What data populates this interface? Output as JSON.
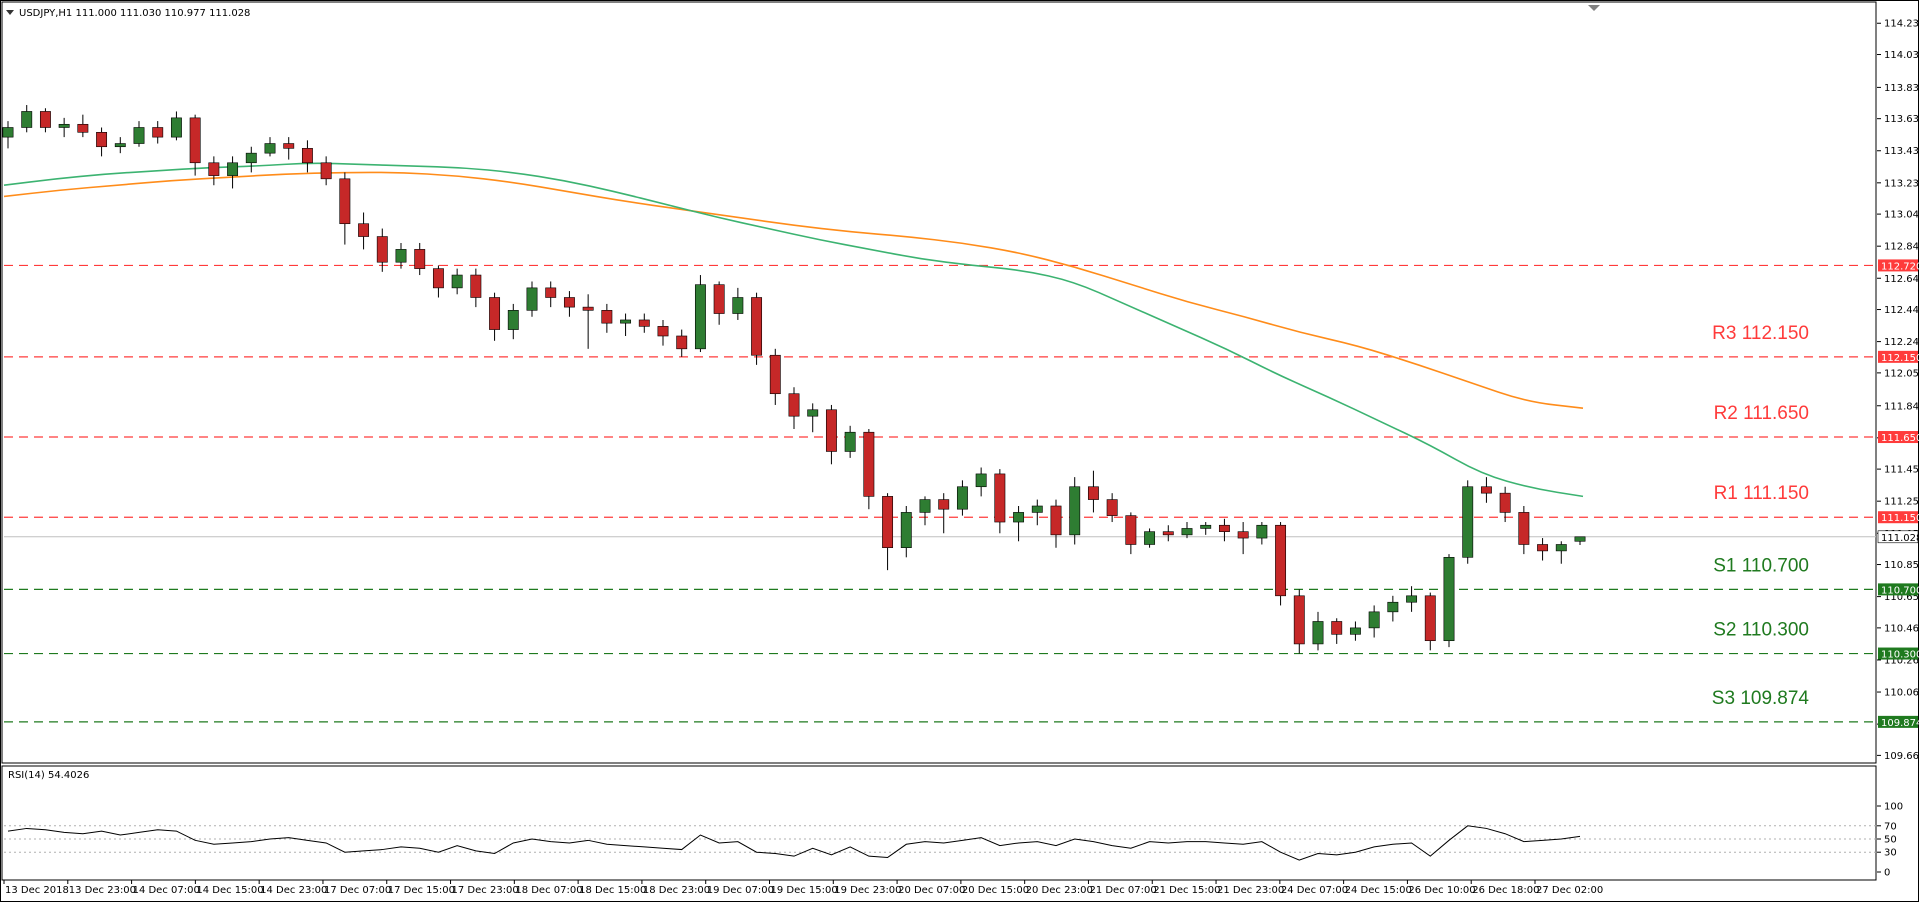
{
  "header": {
    "symbol_text": "USDJPY,H1  111.000 111.030 110.977 111.028"
  },
  "rsi_header": {
    "text": "RSI(14) 54.4026"
  },
  "chart_data": {
    "type": "candlestick",
    "symbol": "USDJPY",
    "timeframe": "H1",
    "ohlc_last": {
      "open": 111.0,
      "high": 111.03,
      "low": 110.977,
      "close": 111.028
    },
    "price_axis": {
      "ticks": [
        "114.230",
        "114.035",
        "113.830",
        "113.635",
        "113.435",
        "113.235",
        "113.040",
        "112.840",
        "112.640",
        "112.445",
        "112.245",
        "112.050",
        "111.845",
        "111.645",
        "111.450",
        "111.250",
        "111.050",
        "110.855",
        "110.655",
        "110.460",
        "110.260",
        "110.060",
        "109.860",
        "109.665"
      ],
      "range": [
        109.63,
        114.35
      ]
    },
    "time_axis": {
      "ticks": [
        "13 Dec 2018",
        "13 Dec 23:00",
        "14 Dec 07:00",
        "14 Dec 15:00",
        "14 Dec 23:00",
        "17 Dec 07:00",
        "17 Dec 15:00",
        "17 Dec 23:00",
        "18 Dec 07:00",
        "18 Dec 15:00",
        "18 Dec 23:00",
        "19 Dec 07:00",
        "19 Dec 15:00",
        "19 Dec 23:00",
        "20 Dec 07:00",
        "20 Dec 15:00",
        "20 Dec 23:00",
        "21 Dec 07:00",
        "21 Dec 15:00",
        "21 Dec 23:00",
        "24 Dec 07:00",
        "24 Dec 15:00",
        "26 Dec 10:00",
        "26 Dec 18:00",
        "27 Dec 02:00"
      ]
    },
    "current_price": {
      "label": "111.028",
      "value": 111.028,
      "color": "#c0c0c0"
    },
    "levels": [
      {
        "name": "",
        "tag": "112.720",
        "value": 112.72,
        "color": "#ff3b3b"
      },
      {
        "name": "R3 112.150",
        "tag": "112.150",
        "value": 112.15,
        "color": "#ff3b3b"
      },
      {
        "name": "R2 111.650",
        "tag": "111.650",
        "value": 111.65,
        "color": "#ff3b3b"
      },
      {
        "name": "R1 111.150",
        "tag": "111.150",
        "value": 111.15,
        "color": "#ff3b3b"
      },
      {
        "name": "S1 110.700",
        "tag": "110.700",
        "value": 110.7,
        "color": "#1f7a1f"
      },
      {
        "name": "S2 110.300",
        "tag": "110.300",
        "value": 110.3,
        "color": "#1f7a1f"
      },
      {
        "name": "S3 109.874",
        "tag": "109.874",
        "value": 109.874,
        "color": "#1f7a1f"
      }
    ],
    "candle_colors": {
      "up": "#2e7d32",
      "down": "#c62828"
    },
    "ma_fast": {
      "color": "#3cb371",
      "values": [
        113.22,
        113.26,
        113.29,
        113.31,
        113.33,
        113.34,
        113.36,
        113.35,
        113.34,
        113.33,
        113.3,
        113.25,
        113.18,
        113.1,
        113.02,
        112.95,
        112.88,
        112.82,
        112.76,
        112.72,
        112.69,
        112.62,
        112.48,
        112.34,
        112.2,
        112.04,
        111.9,
        111.75,
        111.6,
        111.42,
        111.33,
        111.28
      ]
    },
    "ma_slow": {
      "color": "#ff8c1a",
      "values": [
        113.15,
        113.19,
        113.22,
        113.25,
        113.27,
        113.29,
        113.3,
        113.3,
        113.28,
        113.24,
        113.18,
        113.12,
        113.07,
        113.02,
        112.97,
        112.93,
        112.9,
        112.86,
        112.8,
        112.71,
        112.6,
        112.49,
        112.4,
        112.3,
        112.22,
        112.11,
        111.99,
        111.87,
        111.83
      ]
    },
    "ohlc": [
      [
        113.52,
        113.62,
        113.45,
        113.58
      ],
      [
        113.58,
        113.72,
        113.55,
        113.68
      ],
      [
        113.68,
        113.7,
        113.55,
        113.58
      ],
      [
        113.58,
        113.64,
        113.52,
        113.6
      ],
      [
        113.6,
        113.66,
        113.52,
        113.55
      ],
      [
        113.55,
        113.58,
        113.4,
        113.46
      ],
      [
        113.46,
        113.52,
        113.42,
        113.48
      ],
      [
        113.48,
        113.62,
        113.46,
        113.58
      ],
      [
        113.58,
        113.62,
        113.48,
        113.52
      ],
      [
        113.52,
        113.68,
        113.5,
        113.64
      ],
      [
        113.64,
        113.66,
        113.28,
        113.36
      ],
      [
        113.36,
        113.4,
        113.22,
        113.28
      ],
      [
        113.28,
        113.4,
        113.2,
        113.36
      ],
      [
        113.36,
        113.46,
        113.3,
        113.42
      ],
      [
        113.42,
        113.52,
        113.4,
        113.48
      ],
      [
        113.48,
        113.52,
        113.38,
        113.45
      ],
      [
        113.45,
        113.5,
        113.3,
        113.36
      ],
      [
        113.36,
        113.4,
        113.22,
        113.26
      ],
      [
        113.26,
        113.3,
        112.85,
        112.98
      ],
      [
        112.98,
        113.05,
        112.82,
        112.9
      ],
      [
        112.9,
        112.95,
        112.68,
        112.74
      ],
      [
        112.74,
        112.86,
        112.7,
        112.82
      ],
      [
        112.82,
        112.86,
        112.66,
        112.7
      ],
      [
        112.7,
        112.72,
        112.52,
        112.58
      ],
      [
        112.58,
        112.7,
        112.54,
        112.66
      ],
      [
        112.66,
        112.7,
        112.46,
        112.52
      ],
      [
        112.52,
        112.55,
        112.25,
        112.32
      ],
      [
        112.32,
        112.48,
        112.26,
        112.44
      ],
      [
        112.44,
        112.62,
        112.4,
        112.58
      ],
      [
        112.58,
        112.62,
        112.46,
        112.52
      ],
      [
        112.52,
        112.56,
        112.4,
        112.46
      ],
      [
        112.46,
        112.54,
        112.2,
        112.44
      ],
      [
        112.44,
        112.48,
        112.3,
        112.36
      ],
      [
        112.36,
        112.42,
        112.28,
        112.38
      ],
      [
        112.38,
        112.42,
        112.3,
        112.34
      ],
      [
        112.34,
        112.38,
        112.22,
        112.28
      ],
      [
        112.28,
        112.32,
        112.15,
        112.2
      ],
      [
        112.2,
        112.66,
        112.18,
        112.6
      ],
      [
        112.6,
        112.62,
        112.35,
        112.42
      ],
      [
        112.42,
        112.58,
        112.38,
        112.52
      ],
      [
        112.52,
        112.55,
        112.1,
        112.16
      ],
      [
        112.16,
        112.2,
        111.85,
        111.92
      ],
      [
        111.92,
        111.96,
        111.7,
        111.78
      ],
      [
        111.78,
        111.86,
        111.68,
        111.82
      ],
      [
        111.82,
        111.85,
        111.48,
        111.56
      ],
      [
        111.56,
        111.72,
        111.52,
        111.68
      ],
      [
        111.68,
        111.7,
        111.2,
        111.28
      ],
      [
        111.28,
        111.3,
        110.82,
        110.96
      ],
      [
        110.96,
        111.22,
        110.9,
        111.18
      ],
      [
        111.18,
        111.28,
        111.1,
        111.26
      ],
      [
        111.26,
        111.3,
        111.05,
        111.2
      ],
      [
        111.2,
        111.38,
        111.16,
        111.34
      ],
      [
        111.34,
        111.46,
        111.28,
        111.42
      ],
      [
        111.42,
        111.45,
        111.05,
        111.12
      ],
      [
        111.12,
        111.22,
        111.0,
        111.18
      ],
      [
        111.18,
        111.26,
        111.1,
        111.22
      ],
      [
        111.22,
        111.26,
        110.96,
        111.04
      ],
      [
        111.04,
        111.4,
        110.98,
        111.34
      ],
      [
        111.34,
        111.44,
        111.18,
        111.26
      ],
      [
        111.26,
        111.3,
        111.12,
        111.16
      ],
      [
        111.16,
        111.18,
        110.92,
        110.98
      ],
      [
        110.98,
        111.08,
        110.96,
        111.06
      ],
      [
        111.06,
        111.1,
        111.0,
        111.04
      ],
      [
        111.04,
        111.12,
        111.02,
        111.08
      ],
      [
        111.08,
        111.12,
        111.04,
        111.1
      ],
      [
        111.1,
        111.14,
        111.0,
        111.06
      ],
      [
        111.06,
        111.12,
        110.92,
        111.02
      ],
      [
        111.02,
        111.12,
        110.98,
        111.1
      ],
      [
        111.1,
        111.12,
        110.6,
        110.66
      ],
      [
        110.66,
        110.7,
        110.3,
        110.36
      ],
      [
        110.36,
        110.56,
        110.32,
        110.5
      ],
      [
        110.5,
        110.52,
        110.36,
        110.42
      ],
      [
        110.42,
        110.5,
        110.38,
        110.46
      ],
      [
        110.46,
        110.6,
        110.4,
        110.56
      ],
      [
        110.56,
        110.66,
        110.5,
        110.62
      ],
      [
        110.62,
        110.72,
        110.56,
        110.66
      ],
      [
        110.66,
        110.68,
        110.32,
        110.38
      ],
      [
        110.38,
        110.92,
        110.34,
        110.9
      ],
      [
        110.9,
        111.38,
        110.86,
        111.34
      ],
      [
        111.34,
        111.4,
        111.24,
        111.3
      ],
      [
        111.3,
        111.34,
        111.12,
        111.18
      ],
      [
        111.18,
        111.22,
        110.92,
        110.98
      ],
      [
        110.98,
        111.02,
        110.88,
        110.94
      ],
      [
        110.94,
        111.0,
        110.86,
        110.98
      ],
      [
        111.0,
        111.03,
        110.977,
        111.028
      ]
    ],
    "rsi": {
      "name": "RSI(14)",
      "current": 54.4026,
      "ticks": [
        "100",
        "70",
        "50",
        "30",
        "0"
      ],
      "levels": [
        70,
        50,
        30
      ],
      "range": [
        0,
        100
      ],
      "values": [
        62,
        66,
        64,
        60,
        58,
        62,
        56,
        60,
        64,
        62,
        48,
        42,
        44,
        46,
        50,
        52,
        48,
        44,
        30,
        32,
        34,
        38,
        36,
        30,
        40,
        32,
        28,
        44,
        50,
        46,
        44,
        48,
        42,
        40,
        38,
        36,
        34,
        56,
        44,
        46,
        30,
        28,
        24,
        36,
        26,
        38,
        24,
        22,
        42,
        46,
        44,
        48,
        52,
        40,
        44,
        46,
        40,
        50,
        46,
        40,
        36,
        46,
        44,
        46,
        46,
        44,
        42,
        46,
        30,
        18,
        28,
        26,
        30,
        38,
        42,
        44,
        24,
        48,
        70,
        66,
        58,
        46,
        48,
        50,
        54
      ]
    }
  }
}
